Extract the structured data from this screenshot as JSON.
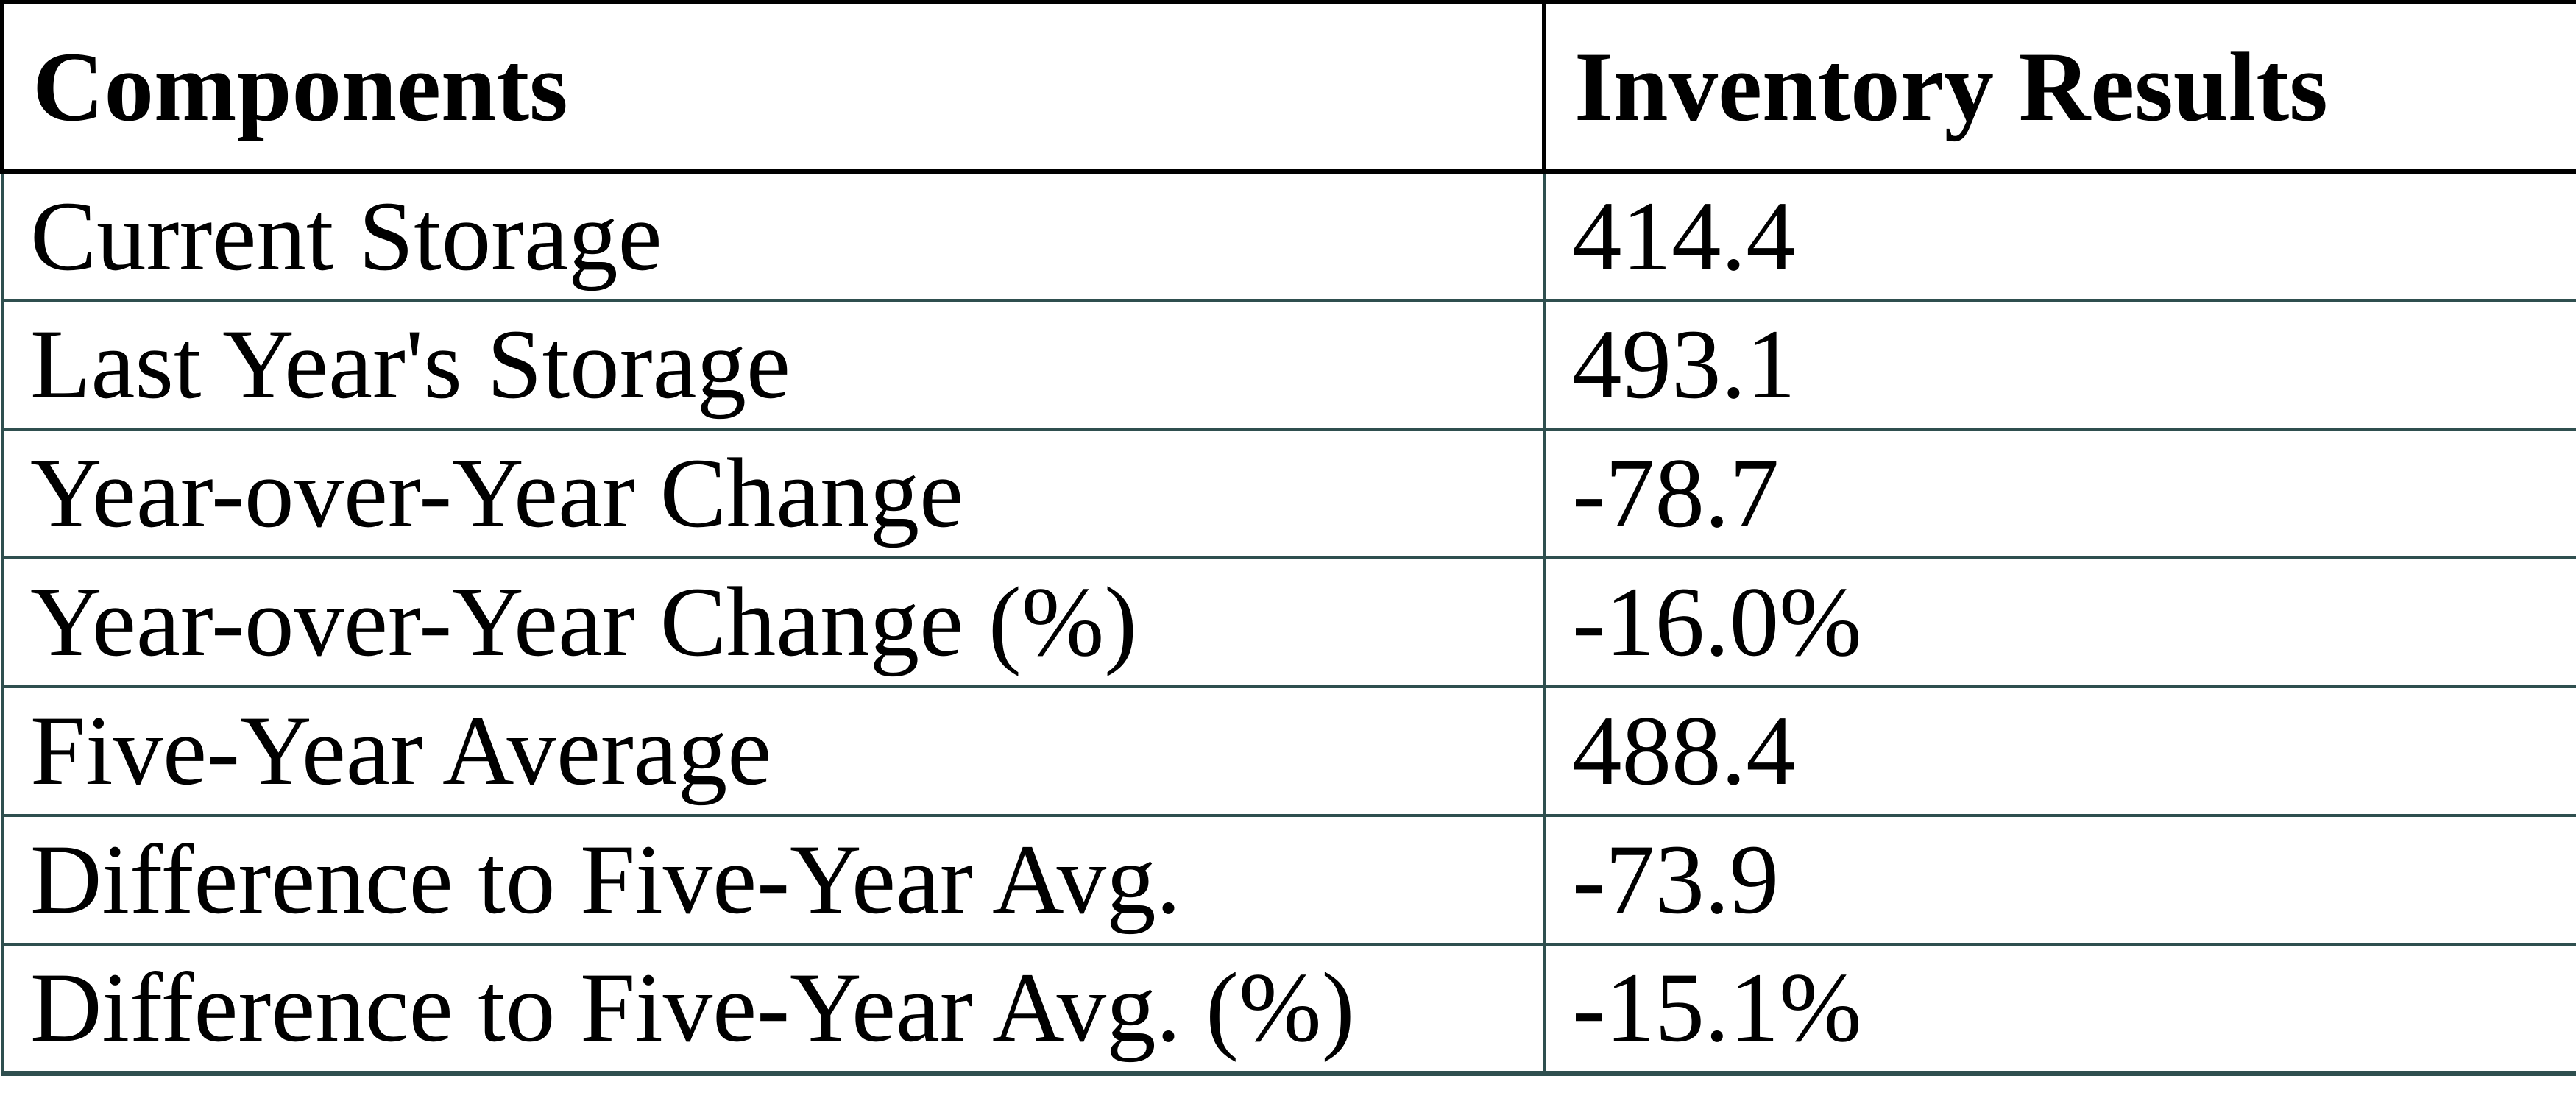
{
  "table": {
    "header": {
      "components": "Components",
      "inventory": "Inventory Results"
    },
    "rows": [
      {
        "label": "Current Storage",
        "value": "414.4"
      },
      {
        "label": "Last Year's Storage",
        "value": "493.1"
      },
      {
        "label": "Year-over-Year Change",
        "value": "-78.7"
      },
      {
        "label": "Year-over-Year Change (%)",
        "value": "-16.0%"
      },
      {
        "label": "Five-Year Average",
        "value": "488.4"
      },
      {
        "label": "Difference to Five-Year Avg.",
        "value": "-73.9"
      },
      {
        "label": "Difference to Five-Year Avg. (%)",
        "value": "-15.1%"
      }
    ],
    "colors": {
      "header_border": "#000000",
      "body_border": "#2F4F4F",
      "text": "#000000",
      "background": "#FFFFFF"
    }
  },
  "chart_data": {
    "type": "table",
    "columns": [
      "Components",
      "Inventory Results"
    ],
    "rows": [
      [
        "Current Storage",
        "414.4"
      ],
      [
        "Last Year's Storage",
        "493.1"
      ],
      [
        "Year-over-Year Change",
        "-78.7"
      ],
      [
        "Year-over-Year Change (%)",
        "-16.0%"
      ],
      [
        "Five-Year Average",
        "488.4"
      ],
      [
        "Difference to Five-Year Avg.",
        "-73.9"
      ],
      [
        "Difference to Five-Year Avg. (%)",
        "-15.1%"
      ]
    ]
  }
}
